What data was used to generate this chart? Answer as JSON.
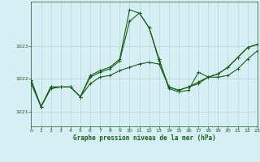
{
  "title": "Graphe pression niveau de la mer (hPa)",
  "background_color": "#d6eff5",
  "grid_color": "#b8d4d8",
  "line_color": "#1a5c1a",
  "xlim": [
    0,
    23
  ],
  "ylim": [
    1020.55,
    1024.35
  ],
  "yticks": [
    1021,
    1022,
    1023
  ],
  "xticks": [
    0,
    1,
    2,
    3,
    4,
    5,
    6,
    7,
    8,
    9,
    10,
    11,
    12,
    13,
    14,
    15,
    16,
    17,
    18,
    19,
    20,
    21,
    22,
    23
  ],
  "series1_x": [
    0,
    1,
    2,
    3,
    4,
    5,
    6,
    7,
    8,
    9,
    10,
    11,
    12,
    13,
    14,
    15,
    16,
    17,
    18,
    19,
    20,
    21,
    22,
    23
  ],
  "series1_y": [
    1021.85,
    1021.15,
    1021.7,
    1021.75,
    1021.75,
    1021.45,
    1021.85,
    1022.05,
    1022.1,
    1022.25,
    1022.35,
    1022.45,
    1022.5,
    1022.45,
    1021.75,
    1021.65,
    1021.75,
    1021.85,
    1022.05,
    1022.15,
    1022.35,
    1022.65,
    1022.95,
    1023.05
  ],
  "series2_x": [
    0,
    1,
    2,
    3,
    4,
    5,
    6,
    7,
    8,
    9,
    10,
    11,
    12,
    13,
    14,
    15,
    16,
    17,
    18,
    19,
    20,
    21,
    22,
    23
  ],
  "series2_y": [
    1021.95,
    1021.15,
    1021.75,
    1021.75,
    1021.75,
    1021.45,
    1022.05,
    1022.2,
    1022.3,
    1022.55,
    1023.75,
    1024.0,
    1023.55,
    1022.55,
    1021.75,
    1021.65,
    1021.75,
    1021.9,
    1022.05,
    1022.15,
    1022.35,
    1022.65,
    1022.95,
    1023.05
  ],
  "series3_x": [
    0,
    1,
    2,
    3,
    4,
    5,
    6,
    7,
    8,
    9,
    10,
    11,
    12,
    13,
    14,
    15,
    16,
    17,
    18,
    19,
    20,
    21,
    22,
    23
  ],
  "series3_y": [
    1021.95,
    1021.15,
    1021.75,
    1021.75,
    1021.75,
    1021.45,
    1022.1,
    1022.25,
    1022.35,
    1022.6,
    1024.1,
    1024.0,
    1023.55,
    1022.6,
    1021.7,
    1021.6,
    1021.65,
    1022.2,
    1022.05,
    1022.05,
    1022.1,
    1022.3,
    1022.6,
    1022.85
  ]
}
